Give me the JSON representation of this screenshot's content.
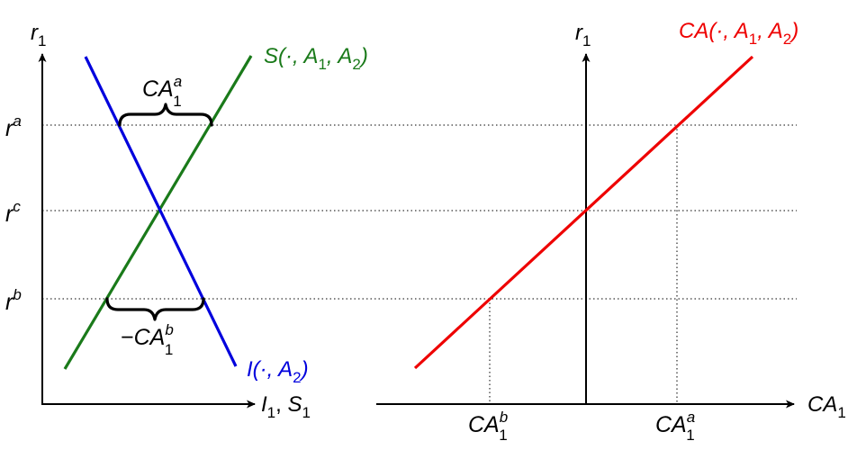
{
  "left_panel": {
    "y_axis": {
      "base": "r",
      "sub": "1"
    },
    "x_axis": {
      "a": "I",
      "a_sub": "1",
      "sep": ", ",
      "b": "S",
      "b_sub": "1"
    },
    "ticks": {
      "ra": {
        "base": "r",
        "sup": "a"
      },
      "rc": {
        "base": "r",
        "sup": "c"
      },
      "rb": {
        "base": "r",
        "sup": "b"
      }
    },
    "saving_label": {
      "pre": "S(·, ",
      "a1": "A",
      "a1_sub": "1",
      "mid": ", ",
      "a2": "A",
      "a2_sub": "2",
      "post": ")",
      "color": "#1a7a1a"
    },
    "investment_label": {
      "pre": "I(·, ",
      "a2": "A",
      "a2_sub": "2",
      "post": ")",
      "color": "#0000dd"
    },
    "brace_top": {
      "base": "CA",
      "sub": "1",
      "sup": "a"
    },
    "brace_bottom": {
      "prefix": "−",
      "base": "CA",
      "sub": "1",
      "sup": "b"
    }
  },
  "right_panel": {
    "y_axis": {
      "base": "r",
      "sub": "1"
    },
    "x_axis": {
      "base": "CA",
      "sub": "1"
    },
    "ca_label": {
      "pre": "CA(·, ",
      "a1": "A",
      "a1_sub": "1",
      "mid": ", ",
      "a2": "A",
      "a2_sub": "2",
      "post": ")",
      "color": "#ee0000"
    },
    "x_tick_b": {
      "base": "CA",
      "sub": "1",
      "sup": "b"
    },
    "x_tick_a": {
      "base": "CA",
      "sub": "1",
      "sup": "a"
    }
  }
}
